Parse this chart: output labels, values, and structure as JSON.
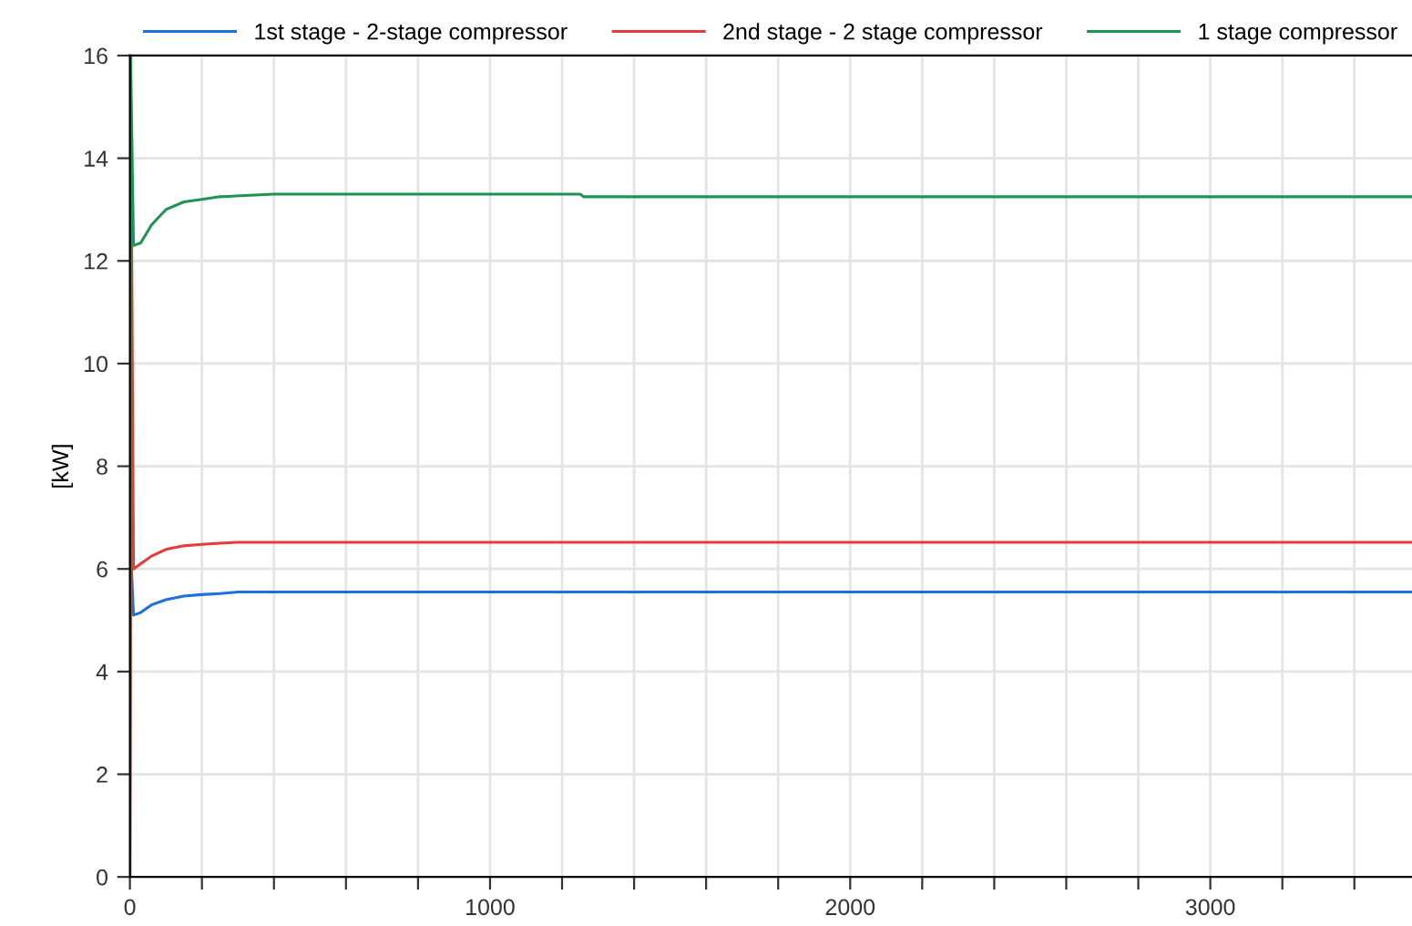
{
  "chart_data": {
    "type": "line",
    "ylabel": "[kW]",
    "xlim": [
      0,
      3560
    ],
    "ylim": [
      0,
      16
    ],
    "xticks": [
      0,
      {
        "value": 200,
        "label": null
      },
      {
        "value": 400,
        "label": null
      },
      {
        "value": 600,
        "label": null
      },
      {
        "value": 800,
        "label": null
      },
      1000,
      {
        "value": 1200,
        "label": null
      },
      {
        "value": 1400,
        "label": null
      },
      {
        "value": 1600,
        "label": null
      },
      {
        "value": 1800,
        "label": null
      },
      2000,
      {
        "value": 2200,
        "label": null
      },
      {
        "value": 2400,
        "label": null
      },
      {
        "value": 2600,
        "label": null
      },
      {
        "value": 2800,
        "label": null
      },
      3000,
      {
        "value": 3200,
        "label": null
      },
      {
        "value": 3400,
        "label": null
      }
    ],
    "yticks": [
      0,
      2,
      4,
      6,
      8,
      10,
      12,
      14,
      16
    ],
    "grid": true,
    "legend": "top",
    "line_style": "solid",
    "marker": "none",
    "series": [
      {
        "name": "1st stage - 2-stage compressor",
        "color": "#1f6fdc",
        "x": [
          0,
          2,
          5,
          10,
          30,
          60,
          100,
          150,
          200,
          250,
          300,
          3560
        ],
        "values": [
          0,
          16,
          5.9,
          5.1,
          5.15,
          5.3,
          5.4,
          5.47,
          5.5,
          5.52,
          5.55,
          5.55
        ]
      },
      {
        "name": "2nd stage - 2 stage compressor",
        "color": "#e83a3a",
        "x": [
          0,
          5,
          10,
          30,
          60,
          100,
          150,
          200,
          250,
          300,
          3560
        ],
        "values": [
          0,
          12.3,
          6.0,
          6.1,
          6.25,
          6.38,
          6.45,
          6.48,
          6.5,
          6.52,
          6.52
        ]
      },
      {
        "name": "1 stage compressor",
        "color": "#1e9450",
        "x": [
          0,
          2,
          10,
          30,
          60,
          100,
          150,
          200,
          250,
          400,
          1250,
          1260,
          3560
        ],
        "values": [
          0,
          16,
          12.3,
          12.35,
          12.7,
          13.0,
          13.15,
          13.2,
          13.25,
          13.3,
          13.3,
          13.25,
          13.25
        ]
      }
    ]
  }
}
